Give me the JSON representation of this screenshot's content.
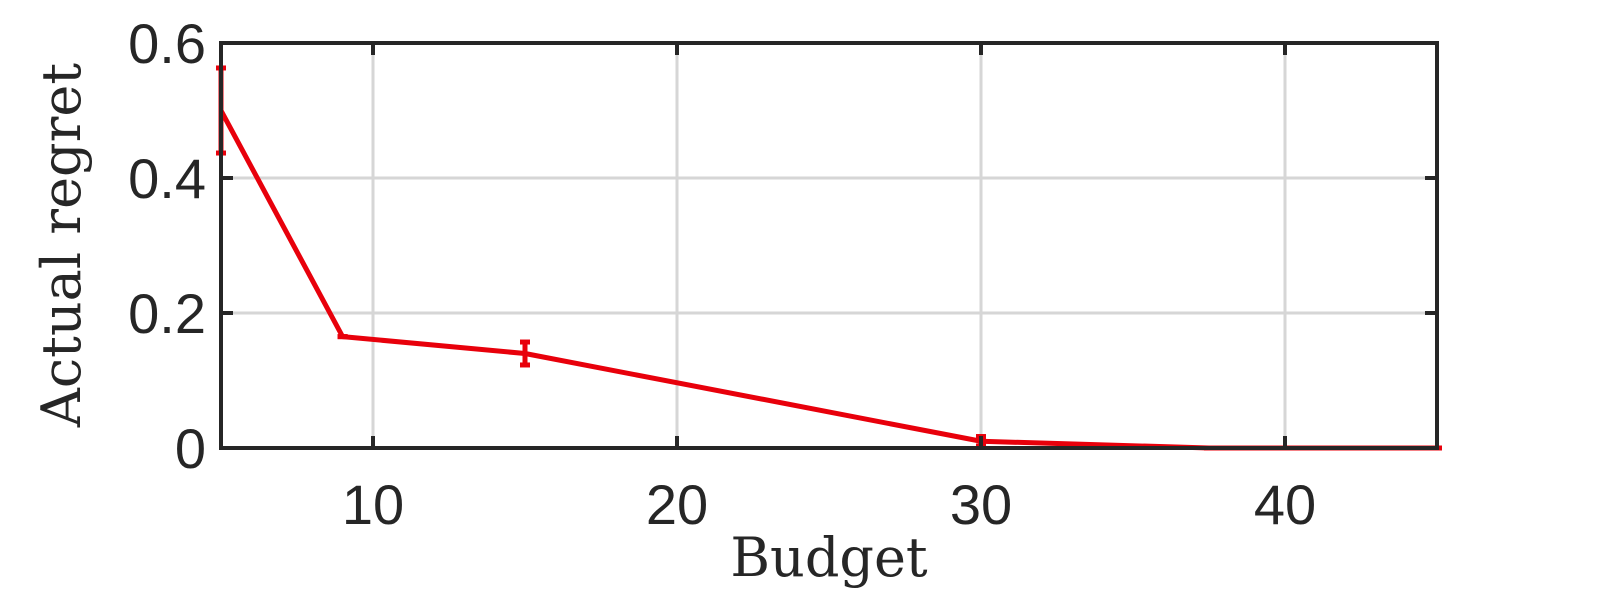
{
  "chart_data": {
    "type": "line",
    "title": "",
    "xlabel": "Budget",
    "ylabel": "Actual regret",
    "xlim": [
      5,
      45
    ],
    "ylim": [
      0,
      0.6
    ],
    "xticks": [
      10,
      20,
      30,
      40
    ],
    "yticks": [
      0,
      0.2,
      0.4,
      0.6
    ],
    "xtick_labels": [
      "10",
      "20",
      "30",
      "40"
    ],
    "ytick_labels": [
      "0",
      "0.2",
      "0.4",
      "0.6"
    ],
    "grid": true,
    "series": [
      {
        "color": "#e8000b",
        "x": [
          5,
          9,
          15,
          30,
          37.5,
          45
        ],
        "y": [
          0.5,
          0.165,
          0.14,
          0.01,
          0.0,
          0.0
        ],
        "err": [
          0.063,
          0.0,
          0.017,
          0.007,
          0.0,
          0.0
        ]
      }
    ]
  }
}
